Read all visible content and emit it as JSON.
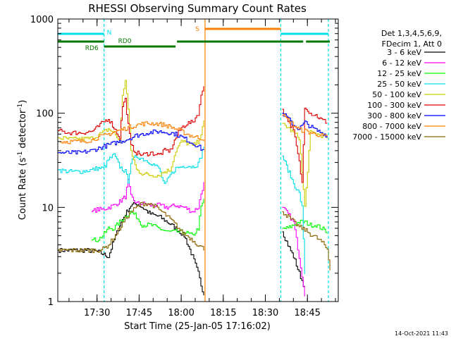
{
  "title": "RHESSI Observing Summary Count Rates",
  "chart_data": {
    "type": "line",
    "title": "RHESSI Observing Summary Count Rates",
    "xlabel": "Start Time (25-Jan-05 17:16:02)",
    "ylabel": "Count Rate (s-1 detector-1)",
    "yscale": "log",
    "ylim": [
      1,
      1000
    ],
    "xlim_minutes_from_start": [
      0,
      100
    ],
    "x_ticks": [
      {
        "label": "17:30",
        "t": 14
      },
      {
        "label": "17:45",
        "t": 29
      },
      {
        "label": "18:00",
        "t": 44
      },
      {
        "label": "18:15",
        "t": 59
      },
      {
        "label": "18:30",
        "t": 74
      },
      {
        "label": "18:45",
        "t": 89
      }
    ],
    "y_ticks": [
      {
        "label": "1",
        "v": 1
      },
      {
        "label": "10",
        "v": 10
      },
      {
        "label": "100",
        "v": 100
      },
      {
        "label": "1000",
        "v": 1000
      }
    ],
    "legend_header": [
      "Det 1,3,4,5,6,9,",
      "FDecim 1, Att 0"
    ],
    "vlines": [
      {
        "t": 16.5,
        "color": "#00e0e8",
        "dashed": true
      },
      {
        "t": 52.5,
        "color": "#ff7f00",
        "dashed": false
      },
      {
        "t": 79.5,
        "color": "#00e0e8",
        "dashed": true
      },
      {
        "t": 96.5,
        "color": "#00e0e8",
        "dashed": true
      }
    ],
    "flag_bars": [
      {
        "label": "N",
        "color": "#00e0e8",
        "segments": [
          [
            0,
            16.5
          ],
          [
            79.5,
            96.5
          ]
        ]
      },
      {
        "label": "S",
        "color": "#ff7f00",
        "segments": [
          [
            52.5,
            79.5
          ]
        ]
      },
      {
        "label": "RD6",
        "color": "#007700",
        "segments": [
          [
            0,
            16.5
          ],
          [
            79.5,
            87.5
          ],
          [
            88.5,
            97
          ]
        ]
      },
      {
        "label": "RD0",
        "color": "#007700",
        "segments": [
          [
            16.5,
            42
          ],
          [
            42.5,
            79.5
          ]
        ]
      }
    ],
    "series": [
      {
        "name": "3 - 6 keV",
        "color": "#000000",
        "t": [
          0,
          5,
          10,
          14,
          16,
          18,
          20,
          22,
          24,
          26,
          28,
          30,
          33,
          36,
          39,
          42,
          45,
          48,
          50,
          51,
          52,
          80,
          82,
          84,
          86,
          88
        ],
        "v": [
          3.5,
          3.5,
          3.5,
          3.4,
          3.2,
          3.0,
          4.5,
          6.5,
          8.5,
          10.5,
          11.0,
          10.0,
          8.5,
          8.0,
          7.0,
          6.0,
          5.0,
          3.0,
          2.0,
          1.5,
          1.2,
          5.5,
          4.0,
          3.0,
          2.0,
          1.4
        ]
      },
      {
        "name": "6 - 12 keV",
        "color": "#ff00ff",
        "t": [
          12,
          14,
          16,
          18,
          20,
          22,
          24,
          25,
          26,
          28,
          30,
          33,
          36,
          39,
          42,
          45,
          48,
          50,
          51,
          52,
          80,
          82,
          84,
          86,
          88
        ],
        "v": [
          9.0,
          9.5,
          9.5,
          10.0,
          10.5,
          11.5,
          13.0,
          19.0,
          13.0,
          11.0,
          11.0,
          10.5,
          10.5,
          10.0,
          10.5,
          10.0,
          9.0,
          10.0,
          14.0,
          18.0,
          10.0,
          8.5,
          7.0,
          3.0,
          1.2
        ]
      },
      {
        "name": "12 - 25 keV",
        "color": "#00ff00",
        "t": [
          12,
          14,
          16,
          18,
          20,
          22,
          24,
          26,
          28,
          30,
          33,
          36,
          39,
          42,
          45,
          48,
          50,
          51,
          52,
          80,
          82,
          84,
          86,
          88,
          90,
          92,
          94,
          96
        ],
        "v": [
          4.5,
          4.5,
          5.0,
          6.0,
          6.0,
          7.0,
          8.0,
          9.0,
          8.0,
          6.5,
          6.5,
          6.0,
          5.5,
          5.5,
          5.5,
          5.0,
          6.0,
          10.0,
          12.0,
          6.0,
          6.0,
          6.5,
          7.0,
          7.0,
          6.5,
          6.5,
          6.0,
          5.5
        ]
      },
      {
        "name": "25 - 50 keV",
        "color": "#00e0e8",
        "t": [
          0,
          4,
          8,
          12,
          14,
          16,
          17,
          18,
          20,
          22,
          24,
          25,
          26,
          28,
          30,
          33,
          36,
          38,
          40,
          42,
          44,
          46,
          48,
          50,
          51,
          52,
          80,
          82,
          84,
          86,
          87,
          88
        ],
        "v": [
          25,
          24,
          24,
          25,
          26,
          26,
          28,
          32,
          36,
          27,
          24,
          19,
          30,
          35,
          33,
          30,
          26,
          17,
          22,
          26,
          27,
          28,
          27,
          29,
          35,
          45,
          35,
          25,
          18,
          14,
          10,
          2.0
        ]
      },
      {
        "name": "50 - 100 keV",
        "color": "#cccc00",
        "t": [
          0,
          4,
          8,
          12,
          14,
          16,
          18,
          20,
          22,
          23,
          24,
          25,
          26,
          28,
          30,
          33,
          36,
          38,
          40,
          42,
          44,
          46,
          48,
          50,
          51,
          52,
          80,
          82,
          84,
          86,
          88,
          90,
          92,
          94,
          96
        ],
        "v": [
          55,
          53,
          53,
          54,
          58,
          62,
          68,
          62,
          50,
          150,
          230,
          110,
          40,
          25,
          23,
          22,
          22,
          24,
          25,
          40,
          50,
          48,
          45,
          50,
          60,
          80,
          78,
          70,
          62,
          55,
          10,
          62,
          60,
          58,
          55
        ]
      },
      {
        "name": "100 - 300 keV",
        "color": "#dd0000",
        "t": [
          0,
          4,
          8,
          12,
          14,
          16,
          18,
          20,
          22,
          23,
          24,
          25,
          26,
          28,
          30,
          33,
          36,
          38,
          40,
          42,
          44,
          46,
          48,
          50,
          51,
          52,
          80,
          82,
          84,
          86,
          87,
          88,
          90,
          92,
          94,
          96
        ],
        "v": [
          65,
          62,
          62,
          64,
          70,
          80,
          88,
          70,
          55,
          120,
          140,
          75,
          45,
          38,
          36,
          38,
          36,
          40,
          40,
          55,
          70,
          78,
          80,
          100,
          150,
          200,
          110,
          85,
          65,
          30,
          18,
          120,
          100,
          95,
          85,
          80
        ]
      },
      {
        "name": "300 - 800 keV",
        "color": "#0000ff",
        "t": [
          0,
          4,
          8,
          12,
          14,
          16,
          18,
          20,
          22,
          24,
          26,
          28,
          30,
          32,
          34,
          36,
          38,
          40,
          42,
          44,
          46,
          48,
          50,
          51,
          52,
          80,
          82,
          84,
          86,
          88,
          90,
          92,
          94,
          96
        ],
        "v": [
          38,
          38,
          38,
          40,
          42,
          44,
          46,
          48,
          50,
          52,
          55,
          58,
          60,
          62,
          63,
          64,
          63,
          62,
          60,
          56,
          52,
          48,
          45,
          42,
          40,
          100,
          88,
          75,
          68,
          80,
          72,
          66,
          62,
          58
        ]
      },
      {
        "name": "800 - 7000 keV",
        "color": "#ff7f00",
        "t": [
          0,
          4,
          8,
          12,
          14,
          16,
          18,
          20,
          22,
          24,
          26,
          28,
          30,
          32,
          34,
          36,
          38,
          40,
          42,
          44,
          46,
          48,
          50,
          51,
          52,
          80,
          82,
          84,
          86,
          88,
          90,
          92,
          94,
          96
        ],
        "v": [
          50,
          50,
          50,
          52,
          55,
          57,
          60,
          63,
          66,
          69,
          72,
          75,
          77,
          78,
          78,
          77,
          75,
          72,
          68,
          64,
          60,
          57,
          55,
          54,
          53,
          95,
          85,
          75,
          67,
          65,
          62,
          60,
          58,
          55
        ]
      },
      {
        "name": "7000 - 15000 keV",
        "color": "#886600",
        "t": [
          0,
          4,
          8,
          12,
          14,
          16,
          18,
          20,
          22,
          24,
          26,
          28,
          30,
          32,
          34,
          36,
          38,
          40,
          42,
          44,
          46,
          48,
          50,
          51,
          52,
          80,
          82,
          84,
          86,
          88,
          90,
          92,
          94,
          96,
          97
        ],
        "v": [
          3.5,
          3.5,
          3.5,
          3.5,
          3.5,
          3.6,
          4.0,
          4.8,
          6.0,
          7.5,
          9.0,
          10.0,
          11.0,
          11.0,
          10.5,
          9.5,
          8.5,
          7.5,
          6.5,
          5.5,
          5.0,
          4.5,
          4.0,
          3.8,
          3.6,
          9.0,
          8.0,
          7.0,
          6.2,
          5.8,
          5.2,
          4.8,
          4.3,
          3.6,
          2.2
        ]
      }
    ]
  },
  "footer": {
    "timestamp": "14-Oct-2021 11:43"
  }
}
